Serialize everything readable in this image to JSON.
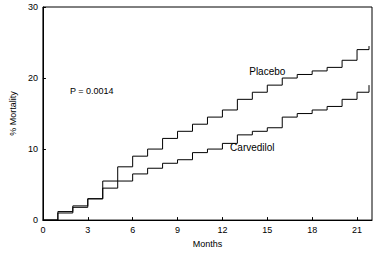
{
  "chart_data": {
    "type": "line",
    "x_label": "Months",
    "y_label": "% Mortality",
    "annotations": [
      "P = 0.0014"
    ],
    "x": [
      0,
      1,
      2,
      3,
      4,
      5,
      6,
      7,
      8,
      9,
      10,
      11,
      12,
      13,
      14,
      15,
      16,
      17,
      18,
      19,
      20,
      21,
      21.8
    ],
    "series": [
      {
        "name": "Placebo",
        "color": "#000000",
        "marker": "none",
        "line_style": "step",
        "values": [
          0,
          1,
          1.8,
          3,
          5.5,
          7.5,
          9,
          10,
          11.5,
          12.5,
          13.5,
          14.5,
          15.5,
          17,
          18,
          19,
          20,
          20.5,
          21,
          21.5,
          22.5,
          24,
          24.5
        ]
      },
      {
        "name": "Carvedilol",
        "color": "#000000",
        "marker": "none",
        "line_style": "step",
        "values": [
          0,
          1.2,
          2,
          3,
          4.5,
          5.5,
          6.5,
          7.3,
          8,
          8.5,
          9.5,
          10,
          10.8,
          12,
          12.5,
          13,
          14.5,
          15,
          15.5,
          16,
          17,
          18,
          19
        ]
      }
    ],
    "xlim": [
      0,
      22
    ],
    "xticks": [
      0,
      3,
      6,
      9,
      12,
      15,
      18,
      21
    ],
    "ylim": [
      0,
      30
    ],
    "yticks": [
      0,
      10,
      20,
      30
    ],
    "grid": false,
    "legend": "none"
  }
}
